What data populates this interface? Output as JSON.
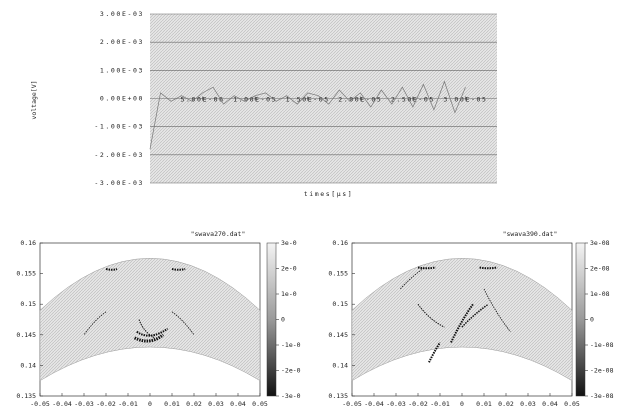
{
  "chart_data": [
    {
      "type": "line",
      "x_label": "times[μs]",
      "y_label": "voltage[V]",
      "color": "#777777",
      "grid": true,
      "x": [
        0,
        1e-06,
        2e-06,
        3e-06,
        4e-06,
        5e-06,
        6e-06,
        7e-06,
        8e-06,
        9e-06,
        1e-05,
        1.1e-05,
        1.2e-05,
        1.3e-05,
        1.4e-05,
        1.5e-05,
        1.6e-05,
        1.7e-05,
        1.8e-05,
        1.9e-05,
        2e-05,
        2.1e-05,
        2.2e-05,
        2.3e-05,
        2.4e-05,
        2.5e-05,
        2.6e-05,
        2.7e-05,
        2.8e-05,
        2.9e-05,
        3e-05
      ],
      "values": [
        -0.0018,
        0.0002,
        -0.0001,
        0.0001,
        -0.0001,
        0.0002,
        0.0004,
        -0.0002,
        0.0001,
        -0.0001,
        0.0001,
        0.0002,
        -0.0001,
        0.0001,
        -0.0002,
        0.0002,
        0.0001,
        -0.0002,
        0.0003,
        -0.0001,
        0.0002,
        -0.0003,
        0.0003,
        -0.0002,
        0.0004,
        -0.0003,
        0.0005,
        -0.0004,
        0.0006,
        -0.0005,
        0.0004
      ],
      "xlim": [
        0,
        3.3e-05
      ],
      "xticks": [
        {
          "value": 5e-06,
          "label": "5.00E-06"
        },
        {
          "value": 1e-05,
          "label": "1.00E-05"
        },
        {
          "value": 1.5e-05,
          "label": "1.50E-05"
        },
        {
          "value": 2e-05,
          "label": "2.00E-05"
        },
        {
          "value": 2.5e-05,
          "label": "2.50E-05"
        },
        {
          "value": 3e-05,
          "label": "3.00E-05"
        }
      ],
      "ylim": [
        -0.003,
        0.003
      ],
      "yticks": [
        {
          "value": 0.003,
          "label": "3.00E-03"
        },
        {
          "value": 0.002,
          "label": "2.00E-03"
        },
        {
          "value": 0.001,
          "label": "1.00E-03"
        },
        {
          "value": 0,
          "label": "0.00E+00"
        },
        {
          "value": -0.001,
          "label": "-1.00E-03"
        },
        {
          "value": -0.002,
          "label": "-2.00E-03"
        },
        {
          "value": -0.003,
          "label": "-3.00E-03"
        }
      ]
    },
    {
      "type": "field",
      "title": "\"swava270.dat\"",
      "xlim": [
        -0.05,
        0.05
      ],
      "xticks": [
        -0.05,
        -0.04,
        -0.03,
        -0.02,
        -0.01,
        0,
        0.01,
        0.02,
        0.03,
        0.04,
        0.05
      ],
      "ylim": [
        0.135,
        0.16
      ],
      "yticks": [
        0.135,
        0.14,
        0.145,
        0.15,
        0.155,
        0.16
      ],
      "clim": [
        -3e-08,
        3e-08
      ],
      "cticks": [
        {
          "value": 3e-08,
          "label": "3e-0"
        },
        {
          "value": 2e-08,
          "label": "2e-0"
        },
        {
          "value": 1e-08,
          "label": "1e-0"
        },
        0,
        {
          "value": -1e-08,
          "label": "-1e-0"
        },
        {
          "value": -2e-08,
          "label": "-2e-0"
        },
        {
          "value": -3e-08,
          "label": "-3e-0"
        }
      ]
    },
    {
      "type": "field",
      "title": "\"swava390.dat\"",
      "xlim": [
        -0.05,
        0.05
      ],
      "xticks": [
        -0.05,
        -0.04,
        -0.03,
        -0.02,
        -0.01,
        0,
        0.01,
        0.02,
        0.03,
        0.04,
        0.05
      ],
      "ylim": [
        0.135,
        0.16
      ],
      "yticks": [
        0.135,
        0.14,
        0.145,
        0.15,
        0.155,
        0.16
      ],
      "clim": [
        -3e-08,
        3e-08
      ],
      "cticks": [
        {
          "value": 3e-08,
          "label": "3e-08"
        },
        {
          "value": 2e-08,
          "label": "2e-08"
        },
        {
          "value": 1e-08,
          "label": "1e-08"
        },
        0,
        {
          "value": -1e-08,
          "label": "-1e-08"
        },
        {
          "value": -2e-08,
          "label": "-2e-08"
        },
        {
          "value": -3e-08,
          "label": "-3e-08"
        }
      ]
    }
  ]
}
